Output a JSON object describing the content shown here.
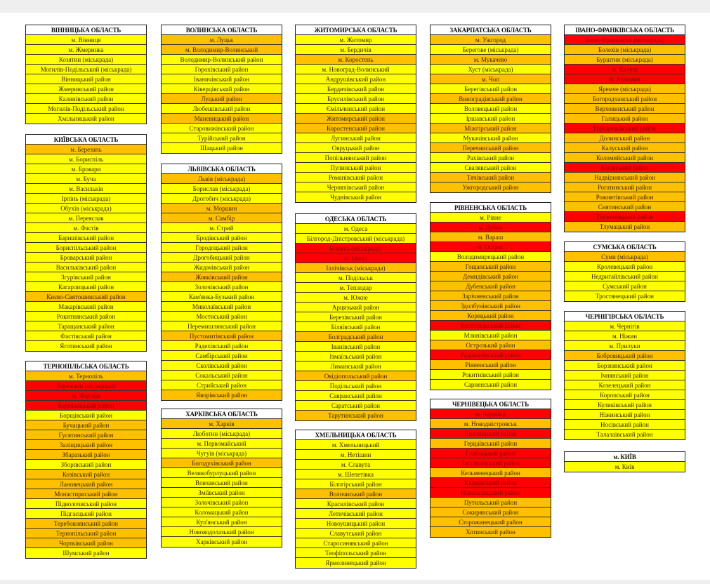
{
  "colors": {
    "y": "#ffff00",
    "o": "#ffc000",
    "r": "#ff0000"
  },
  "regions": [
    {
      "name": "ВІННИЦЬКА ОБЛАСТЬ",
      "rows": [
        [
          "м. Вінниця",
          "y"
        ],
        [
          "м. Жмеринка",
          "y"
        ],
        [
          "Козятин (міськрада)",
          "y"
        ],
        [
          "Могилів-Подільський (міськрада)",
          "y"
        ],
        [
          "Вінницький район",
          "y"
        ],
        [
          "Жмеринський район",
          "y"
        ],
        [
          "Калинівський район",
          "y"
        ],
        [
          "Могилів-Подільський район",
          "y"
        ],
        [
          "Хмільницький район",
          "y"
        ]
      ]
    },
    {
      "name": "КИЇВСЬКА ОБЛАСТЬ",
      "rows": [
        [
          "м. Березань",
          "o"
        ],
        [
          "м. Бориспіль",
          "y"
        ],
        [
          "м. Бровари",
          "y"
        ],
        [
          "м. Буча",
          "y"
        ],
        [
          "м. Васильків",
          "y"
        ],
        [
          "Ірпінь (міськрада)",
          "y"
        ],
        [
          "Обухів (міськрада)",
          "y"
        ],
        [
          "м. Переяслав",
          "y"
        ],
        [
          "м. Фастів",
          "y"
        ],
        [
          "Баришівський район",
          "y"
        ],
        [
          "Бориспільський район",
          "y"
        ],
        [
          "Броварський район",
          "y"
        ],
        [
          "Васильківський район",
          "y"
        ],
        [
          "Згурівський район",
          "y"
        ],
        [
          "Кагарлицький район",
          "y"
        ],
        [
          "Києво-Святошинський район",
          "o"
        ],
        [
          "Макарівський район",
          "y"
        ],
        [
          "Рокитнянський район",
          "y"
        ],
        [
          "Таращанський район",
          "y"
        ],
        [
          "Фастівський район",
          "y"
        ],
        [
          "Яготинський район",
          "y"
        ]
      ]
    },
    {
      "name": "ТЕРНОПІЛЬСЬКА ОБЛАСТЬ",
      "rows": [
        [
          "м. Тернопіль",
          "o"
        ],
        [
          "Бережани (міськрада)",
          "r"
        ],
        [
          "м. Чортків",
          "r"
        ],
        [
          "Бережанський район",
          "r"
        ],
        [
          "Борщівський район",
          "y"
        ],
        [
          "Бучацький район",
          "o"
        ],
        [
          "Гусятинський район",
          "o"
        ],
        [
          "Заліщицький район",
          "o"
        ],
        [
          "Збаразький район",
          "o"
        ],
        [
          "Зборівський район",
          "y"
        ],
        [
          "Козівський район",
          "o"
        ],
        [
          "Лановецький район",
          "o"
        ],
        [
          "Монастириський район",
          "o"
        ],
        [
          "Підволочиський район",
          "y"
        ],
        [
          "Підгаєцький район",
          "y"
        ],
        [
          "Теребовлянський район",
          "o"
        ],
        [
          "Тернопільський район",
          "o"
        ],
        [
          "Чортківський район",
          "o"
        ],
        [
          "Шумський район",
          "y"
        ]
      ]
    },
    {
      "name": "ВОЛИНСЬКА ОБЛАСТЬ",
      "rows": [
        [
          "м. Луцьк",
          "o"
        ],
        [
          "м. Володимир-Волинський",
          "o"
        ],
        [
          "Володимир-Волинський район",
          "y"
        ],
        [
          "Горохівський район",
          "y"
        ],
        [
          "Іваничівський район",
          "y"
        ],
        [
          "Ківерцівський район",
          "y"
        ],
        [
          "Луцький район",
          "o"
        ],
        [
          "Любешівський район",
          "y"
        ],
        [
          "Маневицький район",
          "o"
        ],
        [
          "Старовижівський район",
          "y"
        ],
        [
          "Турійський район",
          "y"
        ],
        [
          "Шацький район",
          "y"
        ]
      ]
    },
    {
      "name": "ЛЬВІВСЬКА ОБЛАСТЬ",
      "rows": [
        [
          "Львів (міськрада)",
          "o"
        ],
        [
          "Борислав (міськрада)",
          "y"
        ],
        [
          "Дрогобич (міськрада)",
          "y"
        ],
        [
          "м. Моршин",
          "o"
        ],
        [
          "м. Самбір",
          "o"
        ],
        [
          "м. Стрий",
          "y"
        ],
        [
          "Бродівський район",
          "y"
        ],
        [
          "Городоцький район",
          "y"
        ],
        [
          "Дрогобицький район",
          "y"
        ],
        [
          "Жидачівський район",
          "y"
        ],
        [
          "Жовківський район",
          "o"
        ],
        [
          "Золочівський район",
          "y"
        ],
        [
          "Кам'янка-Бузький район",
          "y"
        ],
        [
          "Миколаївський район",
          "y"
        ],
        [
          "Мостиський район",
          "y"
        ],
        [
          "Перемишлянський район",
          "y"
        ],
        [
          "Пустомитівський район",
          "o"
        ],
        [
          "Радехівський район",
          "y"
        ],
        [
          "Самбірський район",
          "y"
        ],
        [
          "Сколівський район",
          "y"
        ],
        [
          "Сокальський район",
          "y"
        ],
        [
          "Стрийський район",
          "y"
        ],
        [
          "Яворівський район",
          "o"
        ]
      ]
    },
    {
      "name": "ХАРКІВСЬКА ОБЛАСТЬ",
      "rows": [
        [
          "м. Харків",
          "o"
        ],
        [
          "Люботин (міськрада)",
          "y"
        ],
        [
          "м. Первомайський",
          "y"
        ],
        [
          "Чугуїв (міськрада)",
          "y"
        ],
        [
          "Богодухівський район",
          "o"
        ],
        [
          "Великобурлуцький район",
          "y"
        ],
        [
          "Вовчанський район",
          "y"
        ],
        [
          "Зміївський район",
          "y"
        ],
        [
          "Золочівський район",
          "y"
        ],
        [
          "Коломацький район",
          "y"
        ],
        [
          "Куп'янський район",
          "y"
        ],
        [
          "Нововодолазький район",
          "y"
        ],
        [
          "Харківський район",
          "y"
        ]
      ]
    },
    {
      "name": "ЖИТОМИРСЬКА ОБЛАСТЬ",
      "rows": [
        [
          "м. Житомир",
          "y"
        ],
        [
          "м. Бердичів",
          "y"
        ],
        [
          "м. Коростень",
          "o"
        ],
        [
          "м. Новоград-Волинський",
          "y"
        ],
        [
          "Андрушівський район",
          "y"
        ],
        [
          "Бердичівський район",
          "y"
        ],
        [
          "Брусилівський район",
          "y"
        ],
        [
          "Ємільчинський район",
          "y"
        ],
        [
          "Житомирський район",
          "o"
        ],
        [
          "Коростенський район",
          "o"
        ],
        [
          "Лугинський район",
          "y"
        ],
        [
          "Овруцький район",
          "y"
        ],
        [
          "Попільнянський район",
          "y"
        ],
        [
          "Пулинський район",
          "y"
        ],
        [
          "Романівський район",
          "y"
        ],
        [
          "Черняхівський район",
          "y"
        ],
        [
          "Чуднівський район",
          "y"
        ]
      ]
    },
    {
      "name": "ОДЕСЬКА ОБЛАСТЬ",
      "rows": [
        [
          "м. Одеса",
          "y"
        ],
        [
          "Білгород-Дністровський (міськрада)",
          "y"
        ],
        [
          "Білявка (міськрада)",
          "r"
        ],
        [
          "м. Ізмаїл",
          "r"
        ],
        [
          "Іллічівськ (міськрада)",
          "o"
        ],
        [
          "м. Подільськ",
          "y"
        ],
        [
          "м. Теплодар",
          "y"
        ],
        [
          "м. Южне",
          "y"
        ],
        [
          "Арцизький район",
          "y"
        ],
        [
          "Березівський район",
          "y"
        ],
        [
          "Біляївський район",
          "y"
        ],
        [
          "Болградський район",
          "o"
        ],
        [
          "Іванівський район",
          "y"
        ],
        [
          "Ізмаїльський район",
          "y"
        ],
        [
          "Лиманський район",
          "y"
        ],
        [
          "Овідіопольський район",
          "o"
        ],
        [
          "Подільський район",
          "y"
        ],
        [
          "Савранський район",
          "y"
        ],
        [
          "Саратський район",
          "y"
        ],
        [
          "Тарутинський район",
          "o"
        ]
      ]
    },
    {
      "name": "ХМЕЛЬНИЦЬКА ОБЛАСТЬ",
      "rows": [
        [
          "м. Хмельницький",
          "y"
        ],
        [
          "м. Нетішин",
          "y"
        ],
        [
          "м. Славута",
          "y"
        ],
        [
          "м. Шепетівка",
          "y"
        ],
        [
          "Білогірський район",
          "y"
        ],
        [
          "Волочиський район",
          "o"
        ],
        [
          "Красилівський район",
          "y"
        ],
        [
          "Летичівський район",
          "y"
        ],
        [
          "Новоушицький район",
          "y"
        ],
        [
          "Славутський район",
          "y"
        ],
        [
          "Старосинявський район",
          "y"
        ],
        [
          "Теофіпольський район",
          "y"
        ],
        [
          "Ярмолинецький район",
          "y"
        ]
      ]
    },
    {
      "name": "ЗАКАРПАТСЬКА ОБЛАСТЬ",
      "rows": [
        [
          "м. Ужгород",
          "o"
        ],
        [
          "Берегове (міськрада)",
          "y"
        ],
        [
          "м. Мукачево",
          "o"
        ],
        [
          "Хуст (міськрада)",
          "y"
        ],
        [
          "м. Чоп",
          "o"
        ],
        [
          "Берегівський район",
          "y"
        ],
        [
          "Виноградівський район",
          "o"
        ],
        [
          "Воловецький район",
          "y"
        ],
        [
          "Іршавський район",
          "y"
        ],
        [
          "Міжгірський район",
          "o"
        ],
        [
          "Мукачівський район",
          "y"
        ],
        [
          "Перечинський район",
          "o"
        ],
        [
          "Рахівський район",
          "y"
        ],
        [
          "Свалявський район",
          "y"
        ],
        [
          "Тячівський район",
          "o"
        ],
        [
          "Ужгородський район",
          "o"
        ]
      ]
    },
    {
      "name": "РІВНЕНСЬКА ОБЛАСТЬ",
      "rows": [
        [
          "м. Рівне",
          "y"
        ],
        [
          "м. Дубно",
          "r"
        ],
        [
          "м. Вараш",
          "o"
        ],
        [
          "м. Острог",
          "r"
        ],
        [
          "Володимирецький район",
          "y"
        ],
        [
          "Гощанський район",
          "o"
        ],
        [
          "Демидівський район",
          "o"
        ],
        [
          "Дубенський район",
          "o"
        ],
        [
          "Зарічненський район",
          "o"
        ],
        [
          "Здолбунівський район",
          "o"
        ],
        [
          "Корецький район",
          "o"
        ],
        [
          "Костопільський район",
          "r"
        ],
        [
          "Млинівський район",
          "y"
        ],
        [
          "Острозький район",
          "o"
        ],
        [
          "Радивилівський район",
          "r"
        ],
        [
          "Рівненський район",
          "o"
        ],
        [
          "Рокитнівський район",
          "y"
        ],
        [
          "Сарненський район",
          "y"
        ]
      ]
    },
    {
      "name": "ЧЕРНІВЕЦЬКА ОБЛАСТЬ",
      "rows": [
        [
          "м. Чернівці",
          "r"
        ],
        [
          "м. Новодністровськ",
          "o"
        ],
        [
          "Вижницький район",
          "r"
        ],
        [
          "Герцаївський район",
          "o"
        ],
        [
          "Глибоцький район",
          "r"
        ],
        [
          "Заставнівський район",
          "r"
        ],
        [
          "Кельменецький район",
          "o"
        ],
        [
          "Кіцманський район",
          "r"
        ],
        [
          "Новоселицький район",
          "r"
        ],
        [
          "Путильський район",
          "o"
        ],
        [
          "Сокирянський район",
          "o"
        ],
        [
          "Сторожинецький район",
          "o"
        ],
        [
          "Хотинський район",
          "o"
        ]
      ]
    },
    {
      "name": "ІВАНО-ФРАНКІВСЬКА ОБЛАСТЬ",
      "rows": [
        [
          "Івано-Франківськ (міськрада)",
          "r"
        ],
        [
          "Болехів (міськрада)",
          "o"
        ],
        [
          "Бурштин (міськрада)",
          "o"
        ],
        [
          "м. Калуш",
          "r"
        ],
        [
          "м. Коломия",
          "r"
        ],
        [
          "Яремче (міськрада)",
          "o"
        ],
        [
          "Богородчанський район",
          "o"
        ],
        [
          "Верховинський район",
          "o"
        ],
        [
          "Галицький район",
          "o"
        ],
        [
          "Городенківський район",
          "r"
        ],
        [
          "Долинський район",
          "o"
        ],
        [
          "Калуський район",
          "o"
        ],
        [
          "Коломийський район",
          "o"
        ],
        [
          "Косівський район",
          "r"
        ],
        [
          "Надвірнянський район",
          "o"
        ],
        [
          "Рогатинський район",
          "o"
        ],
        [
          "Рожнятівський район",
          "o"
        ],
        [
          "Снятинський район",
          "o"
        ],
        [
          "Тисменицький район",
          "r"
        ],
        [
          "Тлумацький район",
          "o"
        ]
      ]
    },
    {
      "name": "СУМСЬКА ОБЛАСТЬ",
      "rows": [
        [
          "Суми (міськрада)",
          "o"
        ],
        [
          "Кролевецький район",
          "y"
        ],
        [
          "Недригайлівський район",
          "y"
        ],
        [
          "Сумський район",
          "y"
        ],
        [
          "Тростянецький район",
          "y"
        ]
      ]
    },
    {
      "name": "ЧЕРНІГІВСЬКА ОБЛАСТЬ",
      "rows": [
        [
          "м. Чернігів",
          "y"
        ],
        [
          "м. Ніжин",
          "y"
        ],
        [
          "м. Прилуки",
          "y"
        ],
        [
          "Бобровицький район",
          "o"
        ],
        [
          "Борзнянський район",
          "y"
        ],
        [
          "Ічнянський район",
          "y"
        ],
        [
          "Козелецький район",
          "y"
        ],
        [
          "Коропський район",
          "y"
        ],
        [
          "Куликівський район",
          "y"
        ],
        [
          "Ніжинський район",
          "y"
        ],
        [
          "Носівський район",
          "y"
        ],
        [
          "Талалаївський район",
          "y"
        ]
      ]
    },
    {
      "name": "м. КИЇВ",
      "rows": [
        [
          "м. Київ",
          "y"
        ]
      ]
    }
  ]
}
